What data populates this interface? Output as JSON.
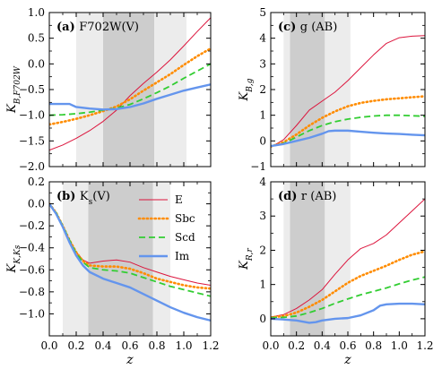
{
  "colors": {
    "E": "#dc143c",
    "Sbc": "#ff8c00",
    "Scd": "#32cd32",
    "Im": "#6495ed",
    "band_light": "#ececec",
    "band_dark": "#cdcdcd"
  },
  "legend_labels": {
    "E": "E",
    "Sbc": "Sbc",
    "Scd": "Scd",
    "Im": "Im"
  },
  "chart_data": [
    {
      "type": "line",
      "panel_label": "(a)",
      "title": "F702W(V)",
      "ylabel": "K_{B,F702W}",
      "xlabel": "",
      "xlim": [
        0,
        1.2
      ],
      "ylim": [
        -2.0,
        1.0
      ],
      "xticks": [],
      "yticks": [
        "−2.0",
        "−1.5",
        "−1.0",
        "−0.5",
        "0.0",
        "0.5",
        "1.0"
      ],
      "ytick_values": [
        -2.0,
        -1.5,
        -1.0,
        -0.5,
        0.0,
        0.5,
        1.0
      ],
      "light_band": [
        0.2,
        1.02
      ],
      "dark_band": [
        0.4,
        0.78
      ],
      "legend": false,
      "series": [
        {
          "name": "E",
          "style": "solid",
          "x": [
            0,
            0.1,
            0.2,
            0.3,
            0.4,
            0.5,
            0.6,
            0.7,
            0.8,
            0.9,
            1.0,
            1.1,
            1.2
          ],
          "y": [
            -1.68,
            -1.58,
            -1.45,
            -1.3,
            -1.12,
            -0.9,
            -0.62,
            -0.38,
            -0.16,
            0.08,
            0.35,
            0.63,
            0.9
          ]
        },
        {
          "name": "Sbc",
          "style": "dotted",
          "x": [
            0,
            0.1,
            0.2,
            0.3,
            0.4,
            0.5,
            0.6,
            0.7,
            0.8,
            0.9,
            1.0,
            1.1,
            1.2
          ],
          "y": [
            -1.18,
            -1.13,
            -1.07,
            -1.0,
            -0.92,
            -0.83,
            -0.69,
            -0.52,
            -0.36,
            -0.2,
            -0.02,
            0.15,
            0.3
          ]
        },
        {
          "name": "Scd",
          "style": "dashed",
          "x": [
            0,
            0.1,
            0.2,
            0.3,
            0.4,
            0.5,
            0.6,
            0.7,
            0.8,
            0.9,
            1.0,
            1.1,
            1.2
          ],
          "y": [
            -1.0,
            -0.99,
            -0.97,
            -0.94,
            -0.9,
            -0.86,
            -0.79,
            -0.68,
            -0.56,
            -0.43,
            -0.28,
            -0.14,
            0.0
          ]
        },
        {
          "name": "Im",
          "style": "solid-thick",
          "x": [
            0,
            0.1,
            0.15,
            0.2,
            0.3,
            0.4,
            0.5,
            0.6,
            0.7,
            0.8,
            0.9,
            1.0,
            1.1,
            1.2
          ],
          "y": [
            -0.78,
            -0.78,
            -0.78,
            -0.84,
            -0.87,
            -0.89,
            -0.88,
            -0.84,
            -0.77,
            -0.68,
            -0.6,
            -0.52,
            -0.46,
            -0.4
          ]
        }
      ]
    },
    {
      "type": "line",
      "panel_label": "(c)",
      "title": "g (AB)",
      "ylabel": "K_{B,g}",
      "xlabel": "",
      "xlim": [
        0,
        1.2
      ],
      "ylim": [
        -1,
        5
      ],
      "xticks": [],
      "yticks": [
        "−1",
        "0",
        "1",
        "2",
        "3",
        "4",
        "5"
      ],
      "ytick_values": [
        -1,
        0,
        1,
        2,
        3,
        4,
        5
      ],
      "light_band": [
        0.1,
        0.62
      ],
      "dark_band": [
        0.15,
        0.42
      ],
      "legend": false,
      "series": [
        {
          "name": "E",
          "style": "solid",
          "x": [
            0,
            0.1,
            0.2,
            0.3,
            0.4,
            0.5,
            0.6,
            0.7,
            0.8,
            0.9,
            1.0,
            1.1,
            1.2
          ],
          "y": [
            -0.25,
            0.05,
            0.6,
            1.2,
            1.55,
            1.9,
            2.35,
            2.85,
            3.35,
            3.8,
            4.02,
            4.08,
            4.1
          ]
        },
        {
          "name": "Sbc",
          "style": "dotted",
          "x": [
            0,
            0.1,
            0.2,
            0.3,
            0.4,
            0.5,
            0.6,
            0.7,
            0.8,
            0.9,
            1.0,
            1.1,
            1.2
          ],
          "y": [
            -0.22,
            -0.05,
            0.25,
            0.6,
            0.9,
            1.15,
            1.35,
            1.48,
            1.56,
            1.62,
            1.66,
            1.7,
            1.74
          ]
        },
        {
          "name": "Scd",
          "style": "dashed",
          "x": [
            0,
            0.1,
            0.2,
            0.3,
            0.4,
            0.5,
            0.6,
            0.7,
            0.8,
            0.9,
            1.0,
            1.1,
            1.2
          ],
          "y": [
            -0.2,
            -0.1,
            0.15,
            0.4,
            0.6,
            0.75,
            0.85,
            0.92,
            0.97,
            1.0,
            1.0,
            0.98,
            0.96
          ]
        },
        {
          "name": "Im",
          "style": "solid-thick",
          "x": [
            0,
            0.1,
            0.2,
            0.3,
            0.4,
            0.45,
            0.5,
            0.6,
            0.7,
            0.8,
            0.9,
            1.0,
            1.1,
            1.2
          ],
          "y": [
            -0.2,
            -0.12,
            0.0,
            0.12,
            0.28,
            0.38,
            0.4,
            0.4,
            0.36,
            0.32,
            0.29,
            0.27,
            0.24,
            0.22
          ]
        }
      ]
    },
    {
      "type": "line",
      "panel_label": "(b)",
      "title": "K_s(V)",
      "ylabel": "K_{K,K_s}",
      "xlabel": "z",
      "xlim": [
        0,
        1.2
      ],
      "ylim": [
        -1.2,
        0.2
      ],
      "xticks": [
        "0.0",
        "0.2",
        "0.4",
        "0.6",
        "0.8",
        "1.0",
        "1.2"
      ],
      "xtick_values": [
        0.0,
        0.2,
        0.4,
        0.6,
        0.8,
        1.0,
        1.2
      ],
      "yticks": [
        "−1.0",
        "−0.8",
        "−0.6",
        "−0.4",
        "−0.2",
        "0.0",
        "0.2"
      ],
      "ytick_values": [
        -1.0,
        -0.8,
        -0.6,
        -0.4,
        -0.2,
        0.0,
        0.2
      ],
      "light_band": [
        0.1,
        0.9
      ],
      "dark_band": [
        0.29,
        0.77
      ],
      "legend": true,
      "series": [
        {
          "name": "E",
          "style": "solid",
          "x": [
            0,
            0.05,
            0.1,
            0.15,
            0.2,
            0.25,
            0.3,
            0.4,
            0.5,
            0.6,
            0.7,
            0.8,
            0.9,
            1.0,
            1.1,
            1.2
          ],
          "y": [
            0.0,
            -0.08,
            -0.2,
            -0.33,
            -0.44,
            -0.51,
            -0.54,
            -0.52,
            -0.51,
            -0.53,
            -0.58,
            -0.62,
            -0.66,
            -0.69,
            -0.72,
            -0.74
          ]
        },
        {
          "name": "Sbc",
          "style": "dotted",
          "x": [
            0,
            0.05,
            0.1,
            0.15,
            0.2,
            0.25,
            0.3,
            0.4,
            0.5,
            0.6,
            0.7,
            0.8,
            0.9,
            1.0,
            1.1,
            1.2
          ],
          "y": [
            0.0,
            -0.08,
            -0.2,
            -0.33,
            -0.44,
            -0.52,
            -0.56,
            -0.57,
            -0.57,
            -0.59,
            -0.63,
            -0.68,
            -0.71,
            -0.74,
            -0.76,
            -0.77
          ]
        },
        {
          "name": "Scd",
          "style": "dashed",
          "x": [
            0,
            0.05,
            0.1,
            0.15,
            0.2,
            0.25,
            0.3,
            0.4,
            0.5,
            0.6,
            0.7,
            0.8,
            0.9,
            1.0,
            1.1,
            1.2
          ],
          "y": [
            0.0,
            -0.08,
            -0.2,
            -0.33,
            -0.45,
            -0.53,
            -0.58,
            -0.6,
            -0.61,
            -0.63,
            -0.67,
            -0.71,
            -0.75,
            -0.78,
            -0.81,
            -0.84
          ]
        },
        {
          "name": "Im",
          "style": "solid-thick",
          "x": [
            0,
            0.05,
            0.1,
            0.15,
            0.2,
            0.25,
            0.3,
            0.4,
            0.5,
            0.6,
            0.7,
            0.8,
            0.9,
            1.0,
            1.1,
            1.2
          ],
          "y": [
            0.0,
            -0.09,
            -0.21,
            -0.35,
            -0.47,
            -0.56,
            -0.62,
            -0.68,
            -0.72,
            -0.76,
            -0.82,
            -0.88,
            -0.94,
            -0.99,
            -1.03,
            -1.06
          ]
        }
      ]
    },
    {
      "type": "line",
      "panel_label": "(d)",
      "title": "r (AB)",
      "ylabel": "K_{R,r}",
      "xlabel": "z",
      "xlim": [
        0,
        1.2
      ],
      "ylim": [
        -0.5,
        4
      ],
      "xticks": [
        "0.0",
        "0.2",
        "0.4",
        "0.6",
        "0.8",
        "1.0",
        "1.2"
      ],
      "xtick_values": [
        0.0,
        0.2,
        0.4,
        0.6,
        0.8,
        1.0,
        1.2
      ],
      "yticks": [
        "0",
        "1",
        "2",
        "3",
        "4"
      ],
      "ytick_values": [
        0,
        1,
        2,
        3,
        4
      ],
      "light_band": [
        0.1,
        0.62
      ],
      "dark_band": [
        0.15,
        0.42
      ],
      "legend": false,
      "series": [
        {
          "name": "E",
          "style": "solid",
          "x": [
            0,
            0.1,
            0.2,
            0.3,
            0.4,
            0.5,
            0.6,
            0.7,
            0.8,
            0.9,
            1.0,
            1.1,
            1.2
          ],
          "y": [
            0.05,
            0.12,
            0.3,
            0.55,
            0.85,
            1.3,
            1.72,
            2.05,
            2.2,
            2.45,
            2.8,
            3.15,
            3.5
          ]
        },
        {
          "name": "Sbc",
          "style": "dotted",
          "x": [
            0,
            0.1,
            0.2,
            0.3,
            0.4,
            0.5,
            0.6,
            0.7,
            0.8,
            0.9,
            1.0,
            1.1,
            1.2
          ],
          "y": [
            0.04,
            0.08,
            0.18,
            0.35,
            0.55,
            0.8,
            1.05,
            1.25,
            1.4,
            1.55,
            1.72,
            1.87,
            1.97
          ]
        },
        {
          "name": "Scd",
          "style": "dashed",
          "x": [
            0,
            0.1,
            0.2,
            0.3,
            0.4,
            0.5,
            0.6,
            0.7,
            0.8,
            0.9,
            1.0,
            1.1,
            1.2
          ],
          "y": [
            0.03,
            0.04,
            0.08,
            0.18,
            0.3,
            0.45,
            0.58,
            0.7,
            0.8,
            0.9,
            1.02,
            1.13,
            1.22
          ]
        },
        {
          "name": "Im",
          "style": "solid-thick",
          "x": [
            0,
            0.1,
            0.2,
            0.3,
            0.35,
            0.4,
            0.5,
            0.6,
            0.7,
            0.8,
            0.85,
            0.9,
            1.0,
            1.1,
            1.2
          ],
          "y": [
            0.0,
            -0.02,
            -0.05,
            -0.12,
            -0.1,
            -0.05,
            0.0,
            0.02,
            0.1,
            0.25,
            0.38,
            0.42,
            0.44,
            0.44,
            0.42
          ]
        }
      ]
    }
  ]
}
